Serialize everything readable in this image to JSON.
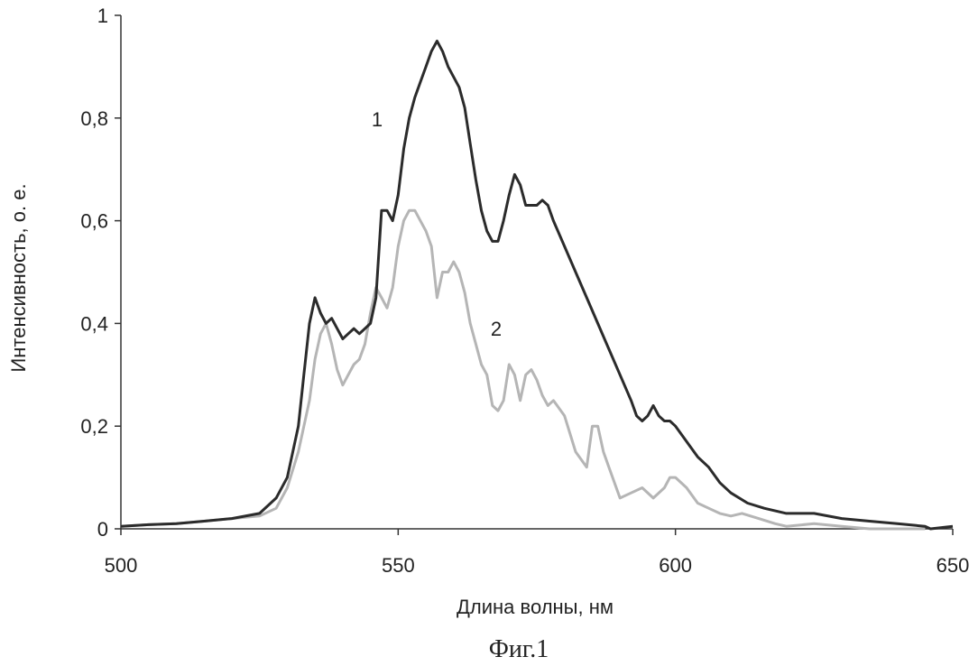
{
  "chart_data": {
    "type": "line",
    "xlabel": "Длина волны, нм",
    "ylabel": "Интенсивность, о. е.",
    "caption": "Фиг.1",
    "xlim": [
      500,
      650
    ],
    "ylim": [
      0,
      1
    ],
    "xticks": [
      500,
      550,
      600,
      650
    ],
    "yticks": [
      0,
      0.2,
      0.4,
      0.6,
      0.8,
      1
    ],
    "ytick_labels": [
      "0",
      "0,2",
      "0,4",
      "0,6",
      "0,8",
      "1"
    ],
    "grid": false,
    "series": [
      {
        "name": "1",
        "color": "#2b2b2b",
        "x": [
          500,
          505,
          510,
          515,
          520,
          525,
          528,
          530,
          532,
          533,
          534,
          535,
          536,
          537,
          538,
          539,
          540,
          541,
          542,
          543,
          544,
          545,
          546,
          547,
          548,
          549,
          550,
          551,
          552,
          553,
          554,
          555,
          556,
          557,
          558,
          559,
          560,
          561,
          562,
          563,
          564,
          565,
          566,
          567,
          568,
          569,
          570,
          571,
          572,
          573,
          574,
          575,
          576,
          577,
          578,
          580,
          582,
          584,
          586,
          588,
          590,
          592,
          593,
          594,
          595,
          596,
          597,
          598,
          599,
          600,
          602,
          604,
          606,
          608,
          610,
          613,
          616,
          620,
          625,
          630,
          635,
          640,
          645,
          646,
          650
        ],
        "y": [
          0.005,
          0.008,
          0.01,
          0.015,
          0.02,
          0.03,
          0.06,
          0.1,
          0.2,
          0.3,
          0.4,
          0.45,
          0.42,
          0.4,
          0.41,
          0.39,
          0.37,
          0.38,
          0.39,
          0.38,
          0.39,
          0.4,
          0.45,
          0.62,
          0.62,
          0.6,
          0.65,
          0.74,
          0.8,
          0.84,
          0.87,
          0.9,
          0.93,
          0.95,
          0.93,
          0.9,
          0.88,
          0.86,
          0.82,
          0.75,
          0.68,
          0.62,
          0.58,
          0.56,
          0.56,
          0.6,
          0.65,
          0.69,
          0.67,
          0.63,
          0.63,
          0.63,
          0.64,
          0.63,
          0.6,
          0.55,
          0.5,
          0.45,
          0.4,
          0.35,
          0.3,
          0.25,
          0.22,
          0.21,
          0.22,
          0.24,
          0.22,
          0.21,
          0.21,
          0.2,
          0.17,
          0.14,
          0.12,
          0.09,
          0.07,
          0.05,
          0.04,
          0.03,
          0.03,
          0.02,
          0.015,
          0.01,
          0.005,
          0.0,
          0.005
        ]
      },
      {
        "name": "2",
        "color": "#b5b5b5",
        "x": [
          500,
          505,
          510,
          515,
          520,
          525,
          528,
          530,
          532,
          534,
          535,
          536,
          537,
          538,
          539,
          540,
          541,
          542,
          543,
          544,
          545,
          546,
          547,
          548,
          549,
          550,
          551,
          552,
          553,
          554,
          555,
          556,
          557,
          558,
          559,
          560,
          561,
          562,
          563,
          564,
          565,
          566,
          567,
          568,
          569,
          570,
          571,
          572,
          573,
          574,
          575,
          576,
          577,
          578,
          580,
          582,
          584,
          585,
          586,
          587,
          588,
          590,
          592,
          594,
          596,
          598,
          599,
          600,
          602,
          604,
          606,
          608,
          610,
          612,
          615,
          618,
          620,
          625,
          630,
          635,
          640,
          645
        ],
        "y": [
          0.005,
          0.008,
          0.01,
          0.015,
          0.02,
          0.025,
          0.04,
          0.08,
          0.15,
          0.25,
          0.33,
          0.38,
          0.4,
          0.36,
          0.31,
          0.28,
          0.3,
          0.32,
          0.33,
          0.36,
          0.42,
          0.47,
          0.45,
          0.43,
          0.47,
          0.55,
          0.6,
          0.62,
          0.62,
          0.6,
          0.58,
          0.55,
          0.45,
          0.5,
          0.5,
          0.52,
          0.5,
          0.46,
          0.4,
          0.36,
          0.32,
          0.3,
          0.24,
          0.23,
          0.25,
          0.32,
          0.3,
          0.25,
          0.3,
          0.31,
          0.29,
          0.26,
          0.24,
          0.25,
          0.22,
          0.15,
          0.12,
          0.2,
          0.2,
          0.15,
          0.12,
          0.06,
          0.07,
          0.08,
          0.06,
          0.08,
          0.1,
          0.1,
          0.08,
          0.05,
          0.04,
          0.03,
          0.025,
          0.03,
          0.02,
          0.01,
          0.005,
          0.01,
          0.005,
          0.0,
          0.0,
          0.0
        ]
      }
    ]
  }
}
